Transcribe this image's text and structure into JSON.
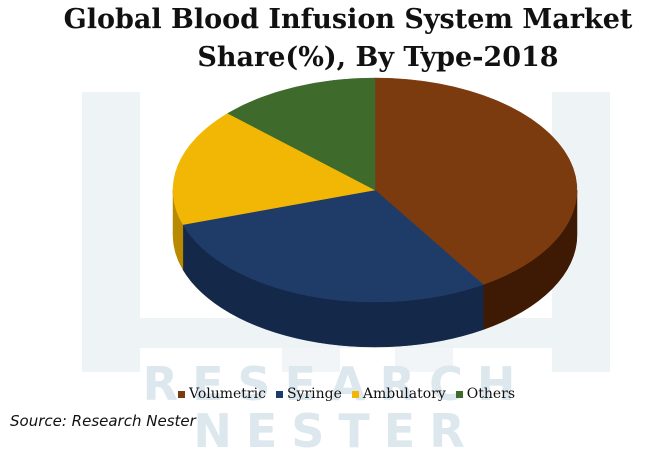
{
  "header": {
    "title_line1": "Global Blood Infusion System Market",
    "title_line2": "Share(%), By Type-2018"
  },
  "watermark": {
    "line1": "RESEARCH",
    "line2": "NESTER"
  },
  "chart_data": {
    "type": "pie",
    "style": "3d",
    "categories": [
      "Volumetric",
      "Syringe",
      "Ambulatory",
      "Others"
    ],
    "values": [
      41,
      29,
      17,
      13
    ],
    "colors": [
      "#7B3B0E",
      "#1F3B68",
      "#F2B705",
      "#3E6B2C"
    ],
    "side_colors": [
      "#3E1A04",
      "#142849",
      "#B98A00",
      "#2A4A1C"
    ],
    "legend_position": "bottom",
    "data_labels": false
  },
  "footer": {
    "source": "Source: Research Nester"
  }
}
